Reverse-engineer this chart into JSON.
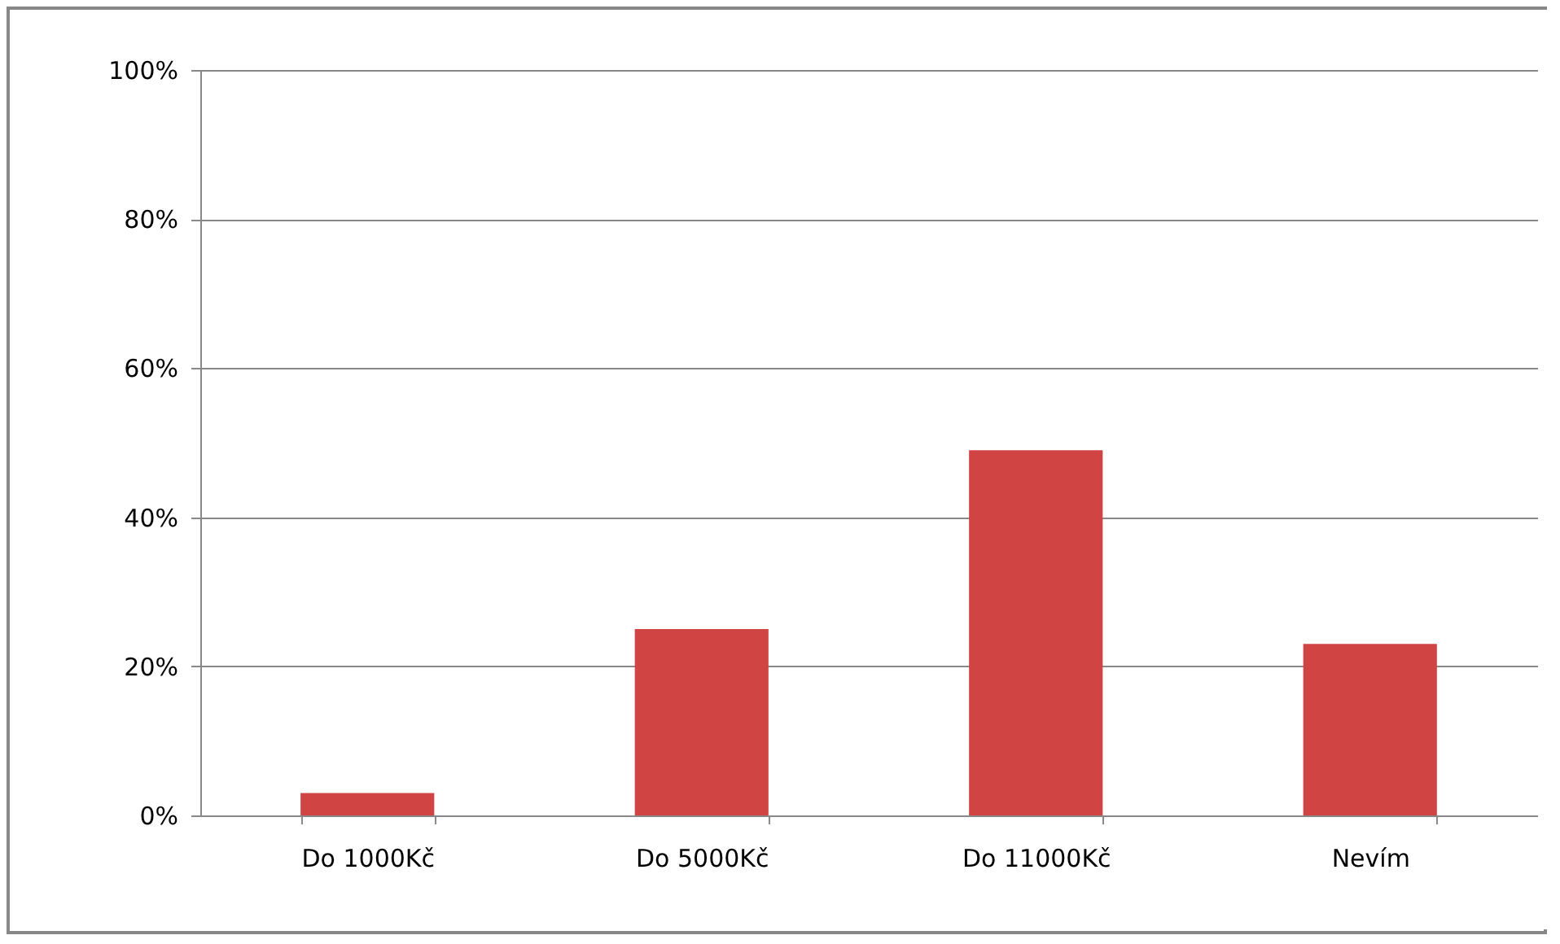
{
  "chart_data": {
    "type": "bar",
    "categories": [
      "Do 1000Kč",
      "Do 5000Kč",
      "Do 11000Kč",
      "Nevím"
    ],
    "values": [
      3,
      25,
      49,
      23
    ],
    "color": "#d04444",
    "ylim": [
      0,
      100
    ],
    "yticks": [
      {
        "value": 0,
        "label": "0%"
      },
      {
        "value": 20,
        "label": "20%"
      },
      {
        "value": 40,
        "label": "40%"
      },
      {
        "value": 60,
        "label": "60%"
      },
      {
        "value": 80,
        "label": "80%"
      },
      {
        "value": 100,
        "label": "100%"
      }
    ],
    "grid": "y"
  }
}
